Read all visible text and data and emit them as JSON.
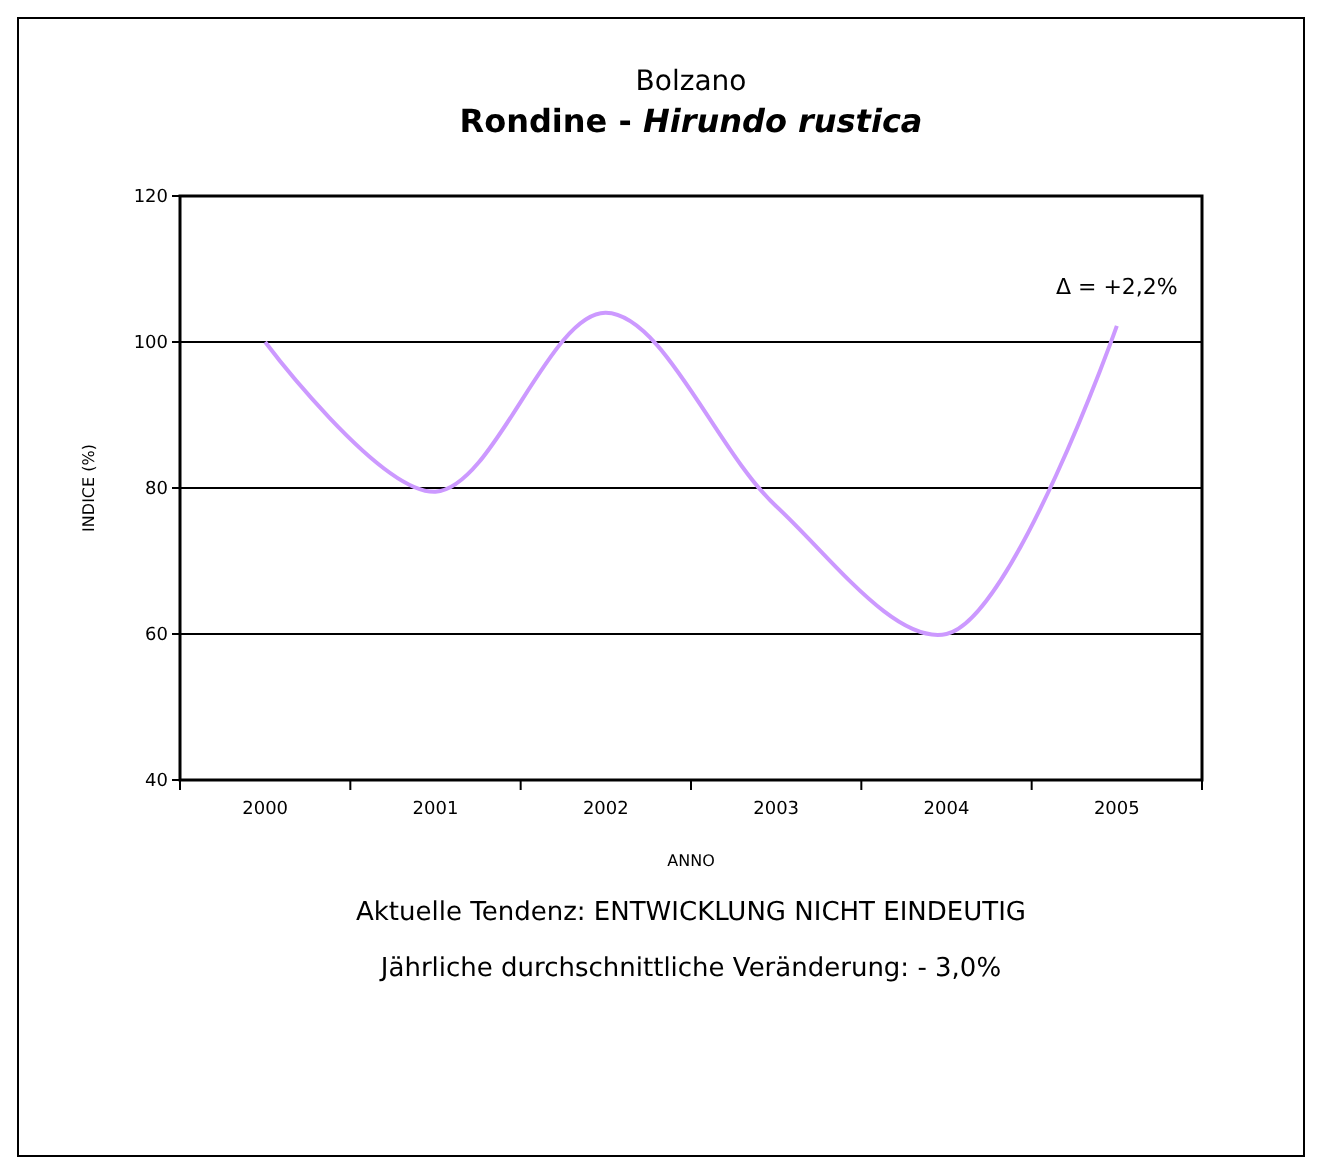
{
  "chart_data": {
    "type": "line",
    "title": "Bolzano",
    "subtitle": "Rondine - Hirundo rustica",
    "xlabel": "ANNO",
    "ylabel": "INDICE (%)",
    "categories": [
      "2000",
      "2001",
      "2002",
      "2003",
      "2004",
      "2005"
    ],
    "series": [
      {
        "color": "#cc99ff",
        "values": [
          100,
          79.5,
          104,
          77.5,
          60,
          102.2
        ]
      }
    ],
    "ylim": [
      40,
      120
    ],
    "yticks": [
      40,
      60,
      80,
      100,
      120
    ],
    "grid": "y",
    "marker": "none",
    "annotations": [
      {
        "text": "Δ = +2,2%",
        "x": "2005",
        "y": 102.2
      },
      "Aktuelle Tendenz: ENTWICKLUNG NICHT EINDEUTIG",
      "Jährliche durchschnittliche Veränderung: - 3,0%"
    ]
  }
}
